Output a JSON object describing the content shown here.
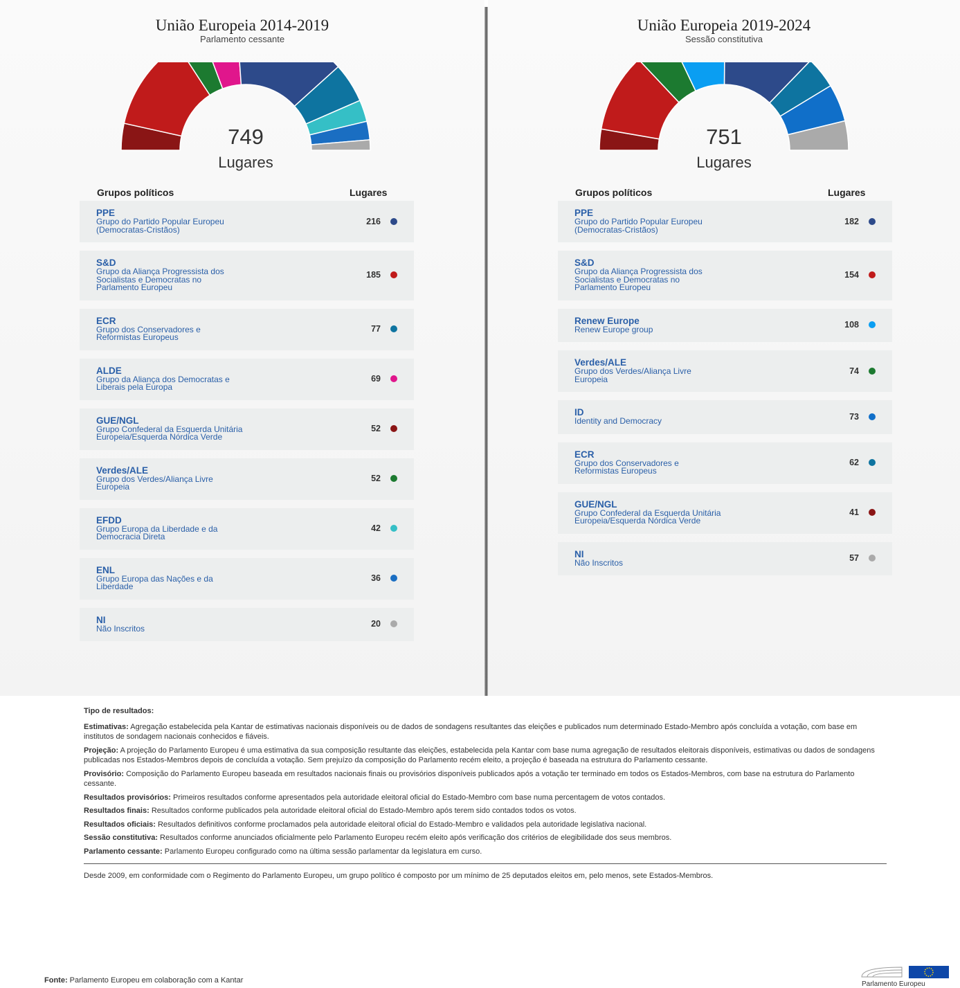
{
  "chart_data": [
    {
      "type": "hemicycle",
      "title": "União Europeia 2014-2019",
      "subtitle": "Parlamento cessante",
      "total": 749,
      "total_label": "Lugares",
      "table_header": [
        "Grupos políticos",
        "Lugares"
      ],
      "categories": [
        "PPE",
        "S&D",
        "ECR",
        "ALDE",
        "GUE/NGL",
        "Verdes/ALE",
        "EFDD",
        "ENL",
        "NI"
      ],
      "descriptions": [
        "Grupo do Partido Popular Europeu (Democratas-Cristãos)",
        "Grupo da Aliança Progressista dos Socialistas e Democratas no Parlamento Europeu",
        "Grupo dos Conservadores e Reformistas Europeus",
        "Grupo da Aliança dos Democratas e Liberais pela Europa",
        "Grupo Confederal da Esquerda Unitária Europeia/Esquerda Nórdica Verde",
        "Grupo dos Verdes/Aliança Livre Europeia",
        "Grupo Europa da Liberdade e da Democracia Direta",
        "Grupo Europa das Nações e da Liberdade",
        "Não Inscritos"
      ],
      "values": [
        216,
        185,
        77,
        69,
        52,
        52,
        42,
        36,
        20
      ],
      "colors": [
        "#2d4a8a",
        "#c01b1b",
        "#0e74a0",
        "#e0168c",
        "#8a1515",
        "#1c7a30",
        "#35bfc6",
        "#1a6ec2",
        "#aaaaaa"
      ],
      "hemicycle_order": [
        "GUE/NGL",
        "S&D",
        "Verdes/ALE",
        "ALDE",
        "PPE",
        "ECR",
        "EFDD",
        "ENL",
        "NI"
      ]
    },
    {
      "type": "hemicycle",
      "title": "União Europeia 2019-2024",
      "subtitle": "Sessão constitutiva",
      "total": 751,
      "total_label": "Lugares",
      "table_header": [
        "Grupos políticos",
        "Lugares"
      ],
      "categories": [
        "PPE",
        "S&D",
        "Renew Europe",
        "Verdes/ALE",
        "ID",
        "ECR",
        "GUE/NGL",
        "NI"
      ],
      "descriptions": [
        "Grupo do Partido Popular Europeu (Democratas-Cristãos)",
        "Grupo da Aliança Progressista dos Socialistas e Democratas no Parlamento Europeu",
        "Renew Europe group",
        "Grupo dos Verdes/Aliança Livre Europeia",
        "Identity and Democracy",
        "Grupo dos Conservadores e Reformistas Europeus",
        "Grupo Confederal da Esquerda Unitária Europeia/Esquerda Nórdica Verde",
        "Não Inscritos"
      ],
      "values": [
        182,
        154,
        108,
        74,
        73,
        62,
        41,
        57
      ],
      "colors": [
        "#2d4a8a",
        "#c01b1b",
        "#0a9ef2",
        "#1c7a30",
        "#106fc9",
        "#0e74a0",
        "#8a1515",
        "#aaaaaa"
      ],
      "hemicycle_order": [
        "GUE/NGL",
        "S&D",
        "Verdes/ALE",
        "Renew Europe",
        "PPE",
        "ECR",
        "ID",
        "NI"
      ]
    }
  ],
  "notes": {
    "heading": "Tipo de resultados:",
    "items": [
      {
        "term": "Estimativas:",
        "text": "Agregação estabelecida pela Kantar de estimativas nacionais disponíveis ou de dados de sondagens resultantes das eleições e publicados num determinado Estado-Membro após concluída a votação, com base em institutos de sondagem nacionais conhecidos e fiáveis."
      },
      {
        "term": "Projeção:",
        "text": "A projeção do Parlamento Europeu é uma estimativa da sua composição resultante das eleições, estabelecida pela Kantar com base numa agregação de resultados eleitorais disponíveis, estimativas ou dados de sondagens publicadas nos Estados-Membros depois de concluída a votação. Sem prejuízo da composição do Parlamento recém eleito, a projeção é baseada na estrutura do Parlamento cessante."
      },
      {
        "term": "Provisório:",
        "text": "Composição do Parlamento Europeu baseada em resultados nacionais finais ou provisórios disponíveis publicados após a votação ter terminado em todos os Estados-Membros, com base na estrutura do Parlamento cessante."
      },
      {
        "term": "Resultados provisórios:",
        "text": "Primeiros resultados conforme apresentados pela autoridade eleitoral oficial do Estado-Membro com base numa percentagem de votos contados."
      },
      {
        "term": "Resultados finais:",
        "text": "Resultados conforme publicados pela autoridade eleitoral oficial do Estado-Membro após terem sido contados todos os votos."
      },
      {
        "term": "Resultados oficiais:",
        "text": "Resultados definitivos conforme proclamados pela autoridade eleitoral oficial do Estado-Membro e validados pela autoridade legislativa nacional."
      },
      {
        "term": "Sessão constitutiva:",
        "text": "Resultados conforme anunciados oficialmente pelo Parlamento Europeu recém eleito após verificação dos critérios de elegibilidade dos seus membros."
      },
      {
        "term": "Parlamento cessante:",
        "text": "Parlamento Europeu configurado como na última sessão parlamentar da legislatura em curso."
      }
    ],
    "footnote": "Desde 2009, em conformidade com o Regimento do Parlamento Europeu, um grupo político é composto por um mínimo de 25 deputados eleitos em, pelo menos, sete Estados-Membros."
  },
  "source": {
    "label": "Fonte:",
    "text": "Parlamento Europeu em colaboração com a Kantar"
  },
  "logo": "Parlamento Europeu"
}
